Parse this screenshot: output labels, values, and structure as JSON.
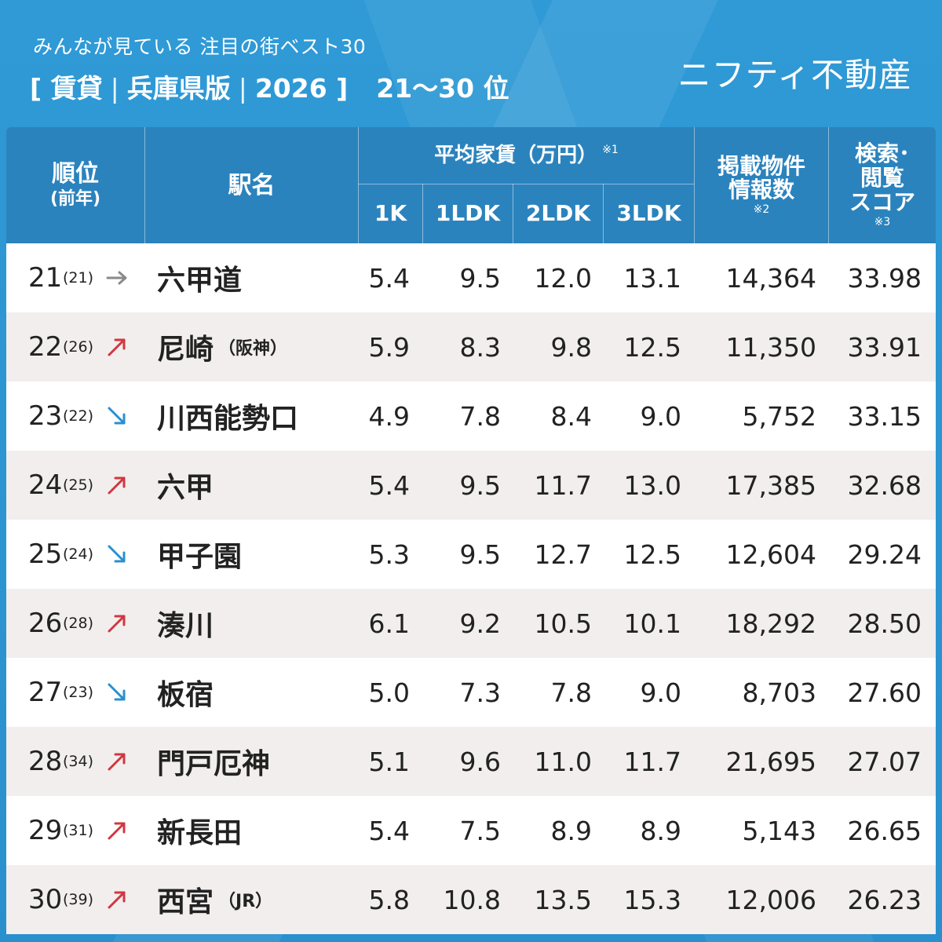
{
  "header": {
    "subtitle": "みんなが見ている 注目の街ベスト30",
    "title_part1": "[ 賃貸",
    "title_part2": "兵庫県版",
    "title_part3": "2026 ]",
    "title_range": "21～30 位",
    "separator": "|",
    "brand": "ニフティ不動産"
  },
  "columns": {
    "rank_line1": "順位",
    "rank_line2": "(前年)",
    "station": "駅名",
    "avg_rent": "平均家賃（万円）",
    "avg_rent_note": "※1",
    "rent_1k": "1K",
    "rent_1ldk": "1LDK",
    "rent_2ldk": "2LDK",
    "rent_3ldk": "3LDK",
    "listings_line1": "掲載物件",
    "listings_line2": "情報数",
    "listings_note": "※2",
    "score_line1": "検索･",
    "score_line2": "閲覧",
    "score_line3": "スコア",
    "score_note": "※3"
  },
  "colors": {
    "up": "#d0373f",
    "down": "#2a8fd0",
    "same": "#8a8a8a"
  },
  "rows": [
    {
      "rank": "21",
      "prev": "(21)",
      "trend": "same",
      "name": "六甲道",
      "suffix": "",
      "k1": "5.4",
      "ldk1": "9.5",
      "ldk2": "12.0",
      "ldk3": "13.1",
      "listings": "14,364",
      "score": "33.98"
    },
    {
      "rank": "22",
      "prev": "(26)",
      "trend": "up",
      "name": "尼崎",
      "suffix": "（阪神）",
      "k1": "5.9",
      "ldk1": "8.3",
      "ldk2": "9.8",
      "ldk3": "12.5",
      "listings": "11,350",
      "score": "33.91"
    },
    {
      "rank": "23",
      "prev": "(22)",
      "trend": "down",
      "name": "川西能勢口",
      "suffix": "",
      "k1": "4.9",
      "ldk1": "7.8",
      "ldk2": "8.4",
      "ldk3": "9.0",
      "listings": "5,752",
      "score": "33.15"
    },
    {
      "rank": "24",
      "prev": "(25)",
      "trend": "up",
      "name": "六甲",
      "suffix": "",
      "k1": "5.4",
      "ldk1": "9.5",
      "ldk2": "11.7",
      "ldk3": "13.0",
      "listings": "17,385",
      "score": "32.68"
    },
    {
      "rank": "25",
      "prev": "(24)",
      "trend": "down",
      "name": "甲子園",
      "suffix": "",
      "k1": "5.3",
      "ldk1": "9.5",
      "ldk2": "12.7",
      "ldk3": "12.5",
      "listings": "12,604",
      "score": "29.24"
    },
    {
      "rank": "26",
      "prev": "(28)",
      "trend": "up",
      "name": "湊川",
      "suffix": "",
      "k1": "6.1",
      "ldk1": "9.2",
      "ldk2": "10.5",
      "ldk3": "10.1",
      "listings": "18,292",
      "score": "28.50"
    },
    {
      "rank": "27",
      "prev": "(23)",
      "trend": "down",
      "name": "板宿",
      "suffix": "",
      "k1": "5.0",
      "ldk1": "7.3",
      "ldk2": "7.8",
      "ldk3": "9.0",
      "listings": "8,703",
      "score": "27.60"
    },
    {
      "rank": "28",
      "prev": "(34)",
      "trend": "up",
      "name": "門戸厄神",
      "suffix": "",
      "k1": "5.1",
      "ldk1": "9.6",
      "ldk2": "11.0",
      "ldk3": "11.7",
      "listings": "21,695",
      "score": "27.07"
    },
    {
      "rank": "29",
      "prev": "(31)",
      "trend": "up",
      "name": "新長田",
      "suffix": "",
      "k1": "5.4",
      "ldk1": "7.5",
      "ldk2": "8.9",
      "ldk3": "8.9",
      "listings": "5,143",
      "score": "26.65"
    },
    {
      "rank": "30",
      "prev": "(39)",
      "trend": "up",
      "name": "西宮",
      "suffix": "（JR）",
      "k1": "5.8",
      "ldk1": "10.8",
      "ldk2": "13.5",
      "ldk3": "15.3",
      "listings": "12,006",
      "score": "26.23"
    }
  ]
}
